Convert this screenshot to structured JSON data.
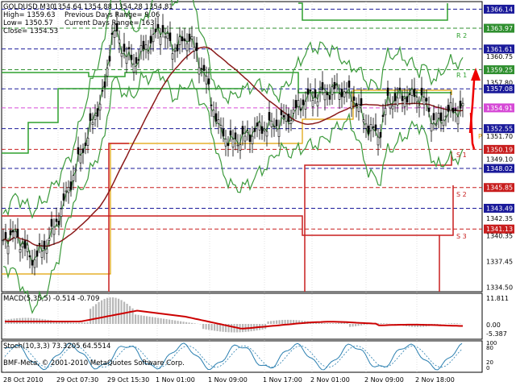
{
  "header": {
    "symbol": "GOLDUSD,M30",
    "ohlc": "1354.64 1354.88 1354.28 1354.81",
    "high": "High= 1359.63",
    "prev_range": "Previous Days Range= 9.06",
    "low": "Low= 1350.57",
    "curr_range": "Current Days Range= 163",
    "close": "Close= 1354.53"
  },
  "main_axis": {
    "ticks": [
      "1366.14",
      "1363.97",
      "1361.61",
      "1360.75",
      "1359.25",
      "1357.80",
      "1357.08",
      "1354.91",
      "1352.55",
      "1351.70",
      "1350.19",
      "1349.10",
      "1348.02",
      "1345.85",
      "1343.49",
      "1342.35",
      "1341.13",
      "1340.35",
      "1337.45",
      "1334.50"
    ],
    "tags": [
      {
        "label": "1366.14",
        "color": "#1a1a9a",
        "text": "#ffffff"
      },
      {
        "label": "1363.97",
        "color": "#2f8f2f",
        "text": "#ffffff"
      },
      {
        "label": "1361.61",
        "color": "#1a1a9a",
        "text": "#ffffff"
      },
      {
        "label": "1359.25",
        "color": "#2f8f2f",
        "text": "#ffffff"
      },
      {
        "label": "1357.08",
        "color": "#1a1a9a",
        "text": "#ffffff"
      },
      {
        "label": "1354.91",
        "color": "#d64ad6",
        "text": "#ffffff"
      },
      {
        "label": "1352.55",
        "color": "#1a1a9a",
        "text": "#ffffff"
      },
      {
        "label": "1350.19",
        "color": "#c81e1e",
        "text": "#ffffff"
      },
      {
        "label": "1348.02",
        "color": "#1a1a9a",
        "text": "#ffffff"
      },
      {
        "label": "1345.85",
        "color": "#c81e1e",
        "text": "#ffffff"
      },
      {
        "label": "1343.49",
        "color": "#1a1a9a",
        "text": "#ffffff"
      },
      {
        "label": "1341.13",
        "color": "#c81e1e",
        "text": "#ffffff"
      }
    ]
  },
  "pivot_labels": {
    "r2": "R 2",
    "r1": "R 1",
    "p": "P",
    "s1": "S 1",
    "s2": "S 2",
    "s3": "S 3"
  },
  "macd": {
    "label": "MACD(5,35,5) -0.514 -0.709",
    "ticks": [
      "11.811",
      "0.00",
      "-5.387"
    ]
  },
  "stoch": {
    "label": "Stoch(10,3,3) 73.3205 64.5514",
    "ticks": [
      "100",
      "80",
      "20",
      "0"
    ]
  },
  "time_axis": [
    "28 Oct 2010",
    "29 Oct 07:30",
    "29 Oct 15:30",
    "1 Nov 01:00",
    "1 Nov 09:00",
    "1 Nov 17:00",
    "2 Nov 01:00",
    "2 Nov 09:00",
    "2 Nov 18:00"
  ],
  "copyright": "BMF-Meta, © 2001-2010 MetaQuotes Software Corp.",
  "colors": {
    "bollinger": "#3c9a3c",
    "ma": "#8b1a1a",
    "pivot": "#e0a000",
    "resistance": "#2fa02f",
    "support": "#c81e1e",
    "macd_hist": "#b8b8b8",
    "macd_signal": "#cc0000",
    "stoch_main": "#2a7fb0",
    "grid_h": "#1a1a9a"
  }
}
